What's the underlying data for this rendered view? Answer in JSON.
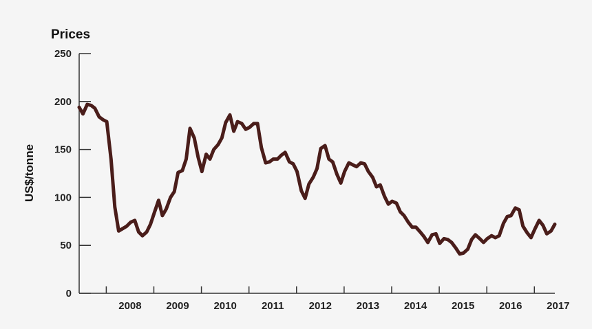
{
  "chart_data": {
    "type": "line",
    "title": "Prices",
    "ylabel": "US$/tonne",
    "xlabel": "",
    "ylim": [
      0,
      250
    ],
    "xlim": [
      2007.0,
      2017.0
    ],
    "yticks": [
      0,
      50,
      100,
      150,
      200,
      250
    ],
    "xtick_labels": [
      "2008",
      "2009",
      "2010",
      "2011",
      "2012",
      "2013",
      "2014",
      "2015",
      "2016",
      "2017"
    ],
    "grid": false,
    "line_color": "#4a1d1a",
    "axis_color": "#333333",
    "series": [
      {
        "x": [
          2007.0,
          2007.08,
          2007.17,
          2007.25,
          2007.33,
          2007.42,
          2007.5,
          2007.58,
          2007.67,
          2007.75,
          2007.83,
          2008.0,
          2008.08,
          2008.17,
          2008.25,
          2008.33,
          2008.42,
          2008.5,
          2008.58,
          2008.67,
          2008.75,
          2008.83,
          2008.92,
          2009.0,
          2009.08,
          2009.17,
          2009.25,
          2009.33,
          2009.42,
          2009.5,
          2009.58,
          2009.67,
          2009.75,
          2009.83,
          2009.92,
          2010.0,
          2010.08,
          2010.17,
          2010.25,
          2010.33,
          2010.42,
          2010.5,
          2010.58,
          2010.67,
          2010.75,
          2010.83,
          2010.92,
          2011.0,
          2011.08,
          2011.17,
          2011.25,
          2011.33,
          2011.42,
          2011.5,
          2011.58,
          2011.67,
          2011.75,
          2011.83,
          2011.92,
          2012.0,
          2012.08,
          2012.17,
          2012.25,
          2012.33,
          2012.42,
          2012.5,
          2012.58,
          2012.67,
          2012.75,
          2012.83,
          2012.92,
          2013.0,
          2013.08,
          2013.17,
          2013.25,
          2013.33,
          2013.42,
          2013.5,
          2013.58,
          2013.67,
          2013.75,
          2013.83,
          2013.92,
          2014.0,
          2014.08,
          2014.17,
          2014.25,
          2014.33,
          2014.42,
          2014.5,
          2014.58,
          2014.67,
          2014.75,
          2014.83,
          2014.92,
          2015.0,
          2015.08,
          2015.17,
          2015.25,
          2015.33,
          2015.42,
          2015.5,
          2015.58,
          2015.67,
          2015.75,
          2015.83,
          2015.92,
          2016.0,
          2016.08,
          2016.17,
          2016.25,
          2016.33,
          2016.42,
          2016.5,
          2016.58,
          2016.67,
          2016.75,
          2016.83,
          2016.92,
          2017.0
        ],
        "values": [
          194,
          187,
          197,
          196,
          193,
          184,
          181,
          179,
          140,
          90,
          65,
          70,
          74,
          76,
          64,
          60,
          64,
          72,
          84,
          97,
          81,
          88,
          100,
          106,
          126,
          128,
          140,
          172,
          162,
          142,
          127,
          145,
          140,
          150,
          155,
          162,
          178,
          186,
          169,
          179,
          177,
          171,
          173,
          177,
          177,
          152,
          136,
          137,
          140,
          140,
          144,
          147,
          137,
          135,
          127,
          107,
          99,
          114,
          121,
          130,
          151,
          154,
          140,
          137,
          124,
          115,
          127,
          136,
          134,
          132,
          136,
          135,
          127,
          121,
          111,
          113,
          101,
          93,
          96,
          94,
          85,
          81,
          74,
          69,
          69,
          64,
          59,
          53,
          61,
          62,
          52,
          57,
          56,
          53,
          47,
          41,
          42,
          46,
          56,
          61,
          57,
          53,
          57,
          60,
          58,
          60,
          73,
          80,
          81,
          89,
          87,
          70,
          63,
          58,
          67,
          76,
          71,
          62,
          65,
          72
        ]
      }
    ]
  }
}
